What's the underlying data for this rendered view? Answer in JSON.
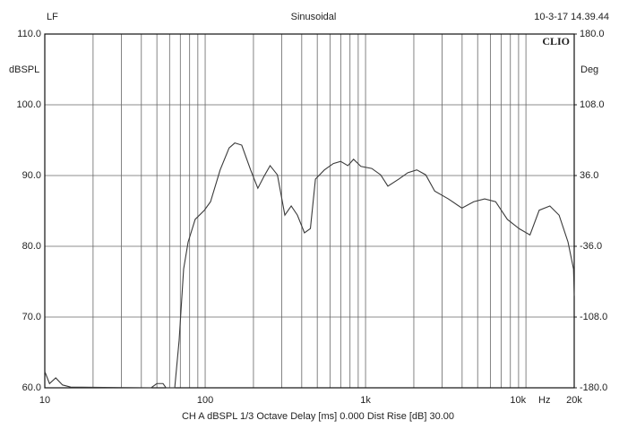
{
  "chart_data": {
    "type": "line",
    "title": "Sinusoidal",
    "left_header": "LF",
    "right_header": "10-3-17 14.39.44",
    "brand": "CLIO",
    "ylabel": "dBSPL",
    "y2label": "Deg",
    "xlabel": "Hz",
    "footer": "CH A  dBSPL  1/3 Octave  Delay [ms] 0.000  Dist Rise [dB] 30.00",
    "xscale": "log",
    "grid": true,
    "xlim": [
      10,
      20000
    ],
    "ylim": [
      60,
      110
    ],
    "y2lim": [
      -180,
      180
    ],
    "xticks": [
      10,
      100,
      {
        "value": 1000,
        "label": "1k"
      },
      {
        "value": 10000,
        "label": "10k"
      },
      {
        "value": 20000,
        "label": "20k"
      }
    ],
    "xgrid": [
      20,
      30,
      40,
      50,
      60,
      70,
      80,
      90,
      200,
      300,
      400,
      500,
      600,
      700,
      800,
      900,
      2000,
      3000,
      4000,
      5000,
      6000,
      7000,
      8000,
      9000
    ],
    "yticks": [
      {
        "value": 60,
        "label": "60.0"
      },
      {
        "value": 70,
        "label": "70.0"
      },
      {
        "value": 80,
        "label": "80.0"
      },
      {
        "value": 90,
        "label": "90.0"
      },
      {
        "value": 100,
        "label": "100.0"
      },
      {
        "value": 110,
        "label": "110.0"
      }
    ],
    "y2ticks": [
      {
        "value": -180,
        "label": "-180.0"
      },
      {
        "value": -108,
        "label": "-108.0"
      },
      {
        "value": -36,
        "label": "-36.0"
      },
      {
        "value": 36,
        "label": "36.0"
      },
      {
        "value": 108,
        "label": "108.0"
      },
      {
        "value": 180,
        "label": "180.0"
      }
    ],
    "x": [
      10,
      10.7,
      11.7,
      12.9,
      14.5,
      46,
      50,
      54.6,
      57,
      64.6,
      68.8,
      73.4,
      78.3,
      86.6,
      98.9,
      108,
      124,
      141,
      153,
      169,
      192,
      213,
      233,
      254,
      282,
      314,
      344,
      376,
      416,
      453,
      487,
      554,
      630,
      699,
      776,
      842,
      935,
      1093,
      1242,
      1378,
      1613,
      1834,
      2087,
      2373,
      2699,
      3281,
      3989,
      4725,
      5530,
      6472,
      7658,
      9063,
      10600,
      12100,
      14100,
      16100,
      18300,
      19800,
      20000
    ],
    "series": [
      {
        "name": "CH A",
        "color": "#3a3a3a",
        "values": [
          62.3,
          60.6,
          61.4,
          60.4,
          60.1,
          60,
          60.6,
          60.6,
          60,
          60,
          66.7,
          76.8,
          80.6,
          83.8,
          85.1,
          86.3,
          90.8,
          93.9,
          94.6,
          94.3,
          90.8,
          88.2,
          89.9,
          91.4,
          90.1,
          84.4,
          85.7,
          84.4,
          81.9,
          82.5,
          89.5,
          90.8,
          91.7,
          92.0,
          91.4,
          92.3,
          91.3,
          91.0,
          90.1,
          88.5,
          89.5,
          90.4,
          90.8,
          90.1,
          87.8,
          86.7,
          85.4,
          86.3,
          86.7,
          86.3,
          83.8,
          82.5,
          81.6,
          85.1,
          85.7,
          84.4,
          80.6,
          76.8,
          73.0
        ]
      }
    ]
  }
}
